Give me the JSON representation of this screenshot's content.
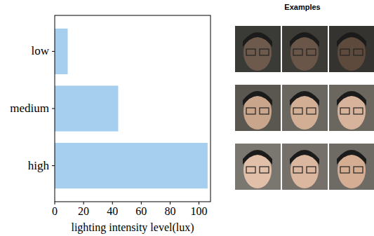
{
  "chart_data": {
    "type": "bar",
    "orientation": "horizontal",
    "categories": [
      "low",
      "medium",
      "high"
    ],
    "values": [
      9,
      44,
      106
    ],
    "color": "#a6cfef",
    "x_label": "lighting intensity level(lux)",
    "xlim": [
      0,
      108
    ],
    "xticks": [
      0,
      20,
      40,
      60,
      80,
      100
    ],
    "grid": false
  },
  "examples": {
    "title": "Examples"
  }
}
